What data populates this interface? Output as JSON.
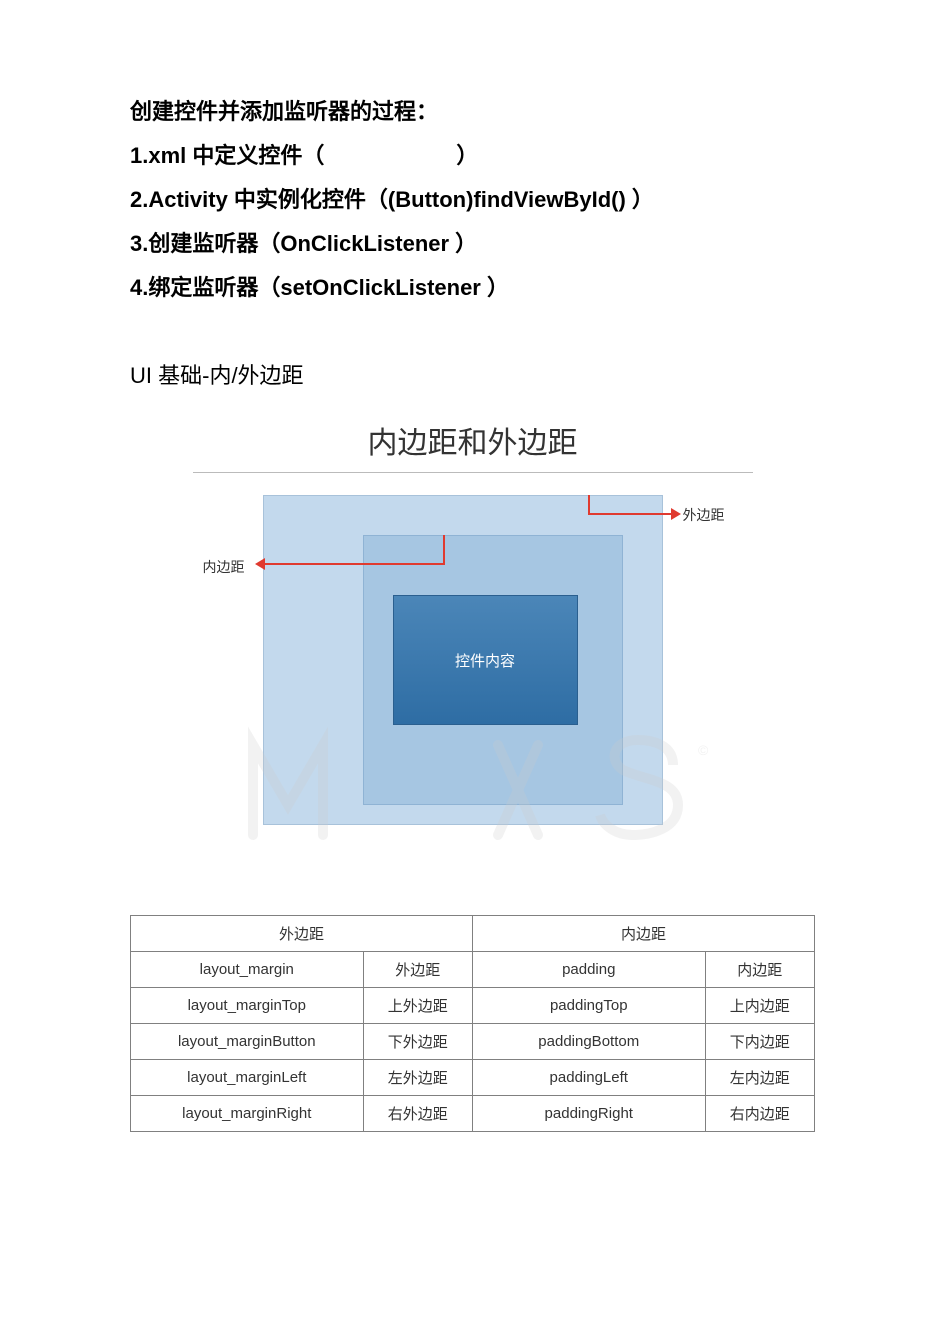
{
  "text": {
    "heading": "创建控件并添加监听器的过程：",
    "step1": "1.xml 中定义控件（      ）",
    "step2": "2.Activity 中实例化控件（(Button)findViewById() ）",
    "step3": "3.创建监听器（OnClickListener ）",
    "step4": "4.绑定监听器（setOnClickListener ）",
    "section": "UI 基础-内/外边距",
    "diagram_title": "内边距和外边距",
    "outer_label": "外边距",
    "inner_label": "内边距",
    "content_label": "控件内容"
  },
  "diagram": {
    "outer_box_color": "#c3d9ed",
    "middle_box_color": "#a6c6e2",
    "inner_box_gradient_top": "#4b86b8",
    "inner_box_gradient_bottom": "#2e6da4",
    "arrow_color": "#e03a2f",
    "label_color": "#333333",
    "watermark_color": "#d9d9d9"
  },
  "table": {
    "header_left": "外边距",
    "header_right": "内边距",
    "rows": [
      {
        "c1": "layout_margin",
        "c2": "外边距",
        "c3": "padding",
        "c4": "内边距"
      },
      {
        "c1": "layout_marginTop",
        "c2": "上外边距",
        "c3": "paddingTop",
        "c4": "上内边距"
      },
      {
        "c1": "layout_marginButton",
        "c2": "下外边距",
        "c3": "paddingBottom",
        "c4": "下内边距"
      },
      {
        "c1": "layout_marginLeft",
        "c2": "左外边距",
        "c3": "paddingLeft",
        "c4": "左内边距"
      },
      {
        "c1": "layout_marginRight",
        "c2": "右外边距",
        "c3": "paddingRight",
        "c4": "右内边距"
      }
    ]
  }
}
